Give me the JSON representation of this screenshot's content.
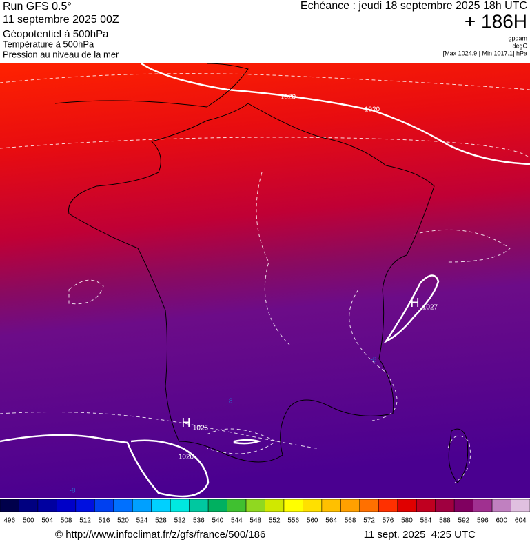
{
  "header": {
    "run": "Run GFS 0.5°",
    "run_date": "11 septembre 2025 00Z",
    "field1": "Géopotentiel à 500hPa",
    "field2": "Température à 500hPa",
    "field3": "Pression au niveau de la mer",
    "echeance": "Echéance : jeudi 18 septembre 2025 18h UTC",
    "lead": "+ 186H",
    "unit1": "gpdam",
    "unit2": "degC",
    "pressure_range": "[Max 1024.9 | Min 1017.1] hPa"
  },
  "map": {
    "labels": [
      "1020",
      "1020",
      "H",
      "1027",
      "H",
      "1025",
      "1020",
      "-8",
      "-8",
      "-8"
    ]
  },
  "colorbar": {
    "ticks": [
      496,
      500,
      504,
      508,
      512,
      516,
      520,
      524,
      528,
      532,
      536,
      540,
      544,
      548,
      552,
      556,
      560,
      564,
      568,
      572,
      576,
      580,
      584,
      588,
      592,
      596,
      600,
      604
    ],
    "colors": [
      "#00004b",
      "#000080",
      "#0000a0",
      "#0000c8",
      "#0010e0",
      "#0040f0",
      "#0070ff",
      "#00a0ff",
      "#00d0ff",
      "#00e8e0",
      "#00c8a0",
      "#00b060",
      "#40c030",
      "#90d820",
      "#d0e800",
      "#ffff00",
      "#ffe000",
      "#ffc000",
      "#ffa000",
      "#ff7000",
      "#ff3000",
      "#e00000",
      "#c00020",
      "#a00040",
      "#800060",
      "#a03090",
      "#c080c0",
      "#e0c0e0"
    ]
  },
  "footer": {
    "url": "© http://www.infoclimat.fr/z/gfs/france/500/186",
    "date": "11 sept. 2025  4:25 UTC"
  }
}
